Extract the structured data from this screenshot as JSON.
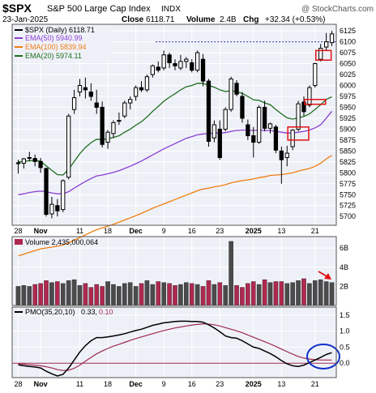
{
  "header": {
    "symbol": "$SPX",
    "name": "S&P 500 Large Cap Index",
    "exchange": "INDX",
    "watermark": "@ StockCharts.com",
    "date": "23-Jan-2025",
    "close_label": "Close",
    "close": "6118.71",
    "volume_label": "Volume",
    "volume": "2.4B",
    "chg_label": "Chg",
    "chg": "+32.34 (+0.53%)",
    "chg_color": "#0a7d0a"
  },
  "legend": {
    "price": "$SPX (Daily) 6118.71",
    "ema50": "EMA(50) 5940.99",
    "ema100": "EMA(100) 5839.94",
    "ema20": "EMA(20) 5974.11",
    "volume": "Volume 2,435,000,064",
    "pmo_prefix": "PMO(35,20,10)",
    "pmo_value": "0.33,",
    "pmo_signal": "0.10"
  },
  "colors": {
    "panel_bg": "#eef0f8",
    "grid": "#ffffff",
    "ema20": "#1d6e1d",
    "ema50": "#8a3fd1",
    "ema100": "#f07d10",
    "candle": "#000000",
    "vol_up": "#4b4b4b",
    "vol_down": "#b0284f",
    "pmo": "#000000",
    "pmo_signal": "#9e2a4f",
    "annotation_red": "#e01010",
    "annotation_blue": "#1030c8",
    "dotted_line": "#1a2aa8"
  },
  "x_axis_labels": [
    "28",
    "Nov",
    "11",
    "18",
    "Dec",
    "9",
    "16",
    "23",
    "2025",
    "13",
    "21"
  ],
  "chart_data": [
    {
      "type": "candlestick",
      "title": "$SPX (Daily) 6118.71",
      "ylim": [
        5680,
        6140
      ],
      "y_ticks": [
        5700,
        5725,
        5750,
        5775,
        5800,
        5825,
        5850,
        5875,
        5900,
        5925,
        5950,
        5975,
        6000,
        6025,
        6050,
        6075,
        6100,
        6125
      ],
      "grid": true,
      "legend_position": "top-left",
      "reference_line": 6100,
      "candles": [
        {
          "o": 5821,
          "h": 5830,
          "l": 5798,
          "c": 5823
        },
        {
          "o": 5822,
          "h": 5834,
          "l": 5810,
          "c": 5832
        },
        {
          "o": 5834,
          "h": 5848,
          "l": 5826,
          "c": 5835
        },
        {
          "o": 5833,
          "h": 5842,
          "l": 5815,
          "c": 5826
        },
        {
          "o": 5826,
          "h": 5834,
          "l": 5800,
          "c": 5812
        },
        {
          "o": 5810,
          "h": 5812,
          "l": 5700,
          "c": 5705
        },
        {
          "o": 5706,
          "h": 5745,
          "l": 5696,
          "c": 5728
        },
        {
          "o": 5725,
          "h": 5740,
          "l": 5700,
          "c": 5713
        },
        {
          "o": 5716,
          "h": 5785,
          "l": 5710,
          "c": 5782
        },
        {
          "o": 5790,
          "h": 5935,
          "l": 5785,
          "c": 5930
        },
        {
          "o": 5945,
          "h": 5990,
          "l": 5935,
          "c": 5972
        },
        {
          "o": 5985,
          "h": 6015,
          "l": 5975,
          "c": 6000
        },
        {
          "o": 5995,
          "h": 6018,
          "l": 5970,
          "c": 5990
        },
        {
          "o": 5985,
          "h": 6005,
          "l": 5965,
          "c": 5975
        },
        {
          "o": 5960,
          "h": 5990,
          "l": 5935,
          "c": 5950
        },
        {
          "o": 5950,
          "h": 5963,
          "l": 5858,
          "c": 5865
        },
        {
          "o": 5870,
          "h": 5898,
          "l": 5855,
          "c": 5893
        },
        {
          "o": 5890,
          "h": 5920,
          "l": 5880,
          "c": 5915
        },
        {
          "o": 5918,
          "h": 5938,
          "l": 5910,
          "c": 5920
        },
        {
          "o": 5930,
          "h": 5965,
          "l": 5925,
          "c": 5960
        },
        {
          "o": 5960,
          "h": 5975,
          "l": 5945,
          "c": 5968
        },
        {
          "o": 5975,
          "h": 6000,
          "l": 5965,
          "c": 5995
        },
        {
          "o": 5995,
          "h": 6010,
          "l": 5985,
          "c": 5990
        },
        {
          "o": 5990,
          "h": 6025,
          "l": 5985,
          "c": 6020
        },
        {
          "o": 6025,
          "h": 6048,
          "l": 6018,
          "c": 6045
        },
        {
          "o": 6042,
          "h": 6055,
          "l": 6030,
          "c": 6035
        },
        {
          "o": 6040,
          "h": 6080,
          "l": 6035,
          "c": 6070
        },
        {
          "o": 6070,
          "h": 6075,
          "l": 6040,
          "c": 6052
        },
        {
          "o": 6050,
          "h": 6060,
          "l": 6035,
          "c": 6045
        },
        {
          "o": 6040,
          "h": 6070,
          "l": 6035,
          "c": 6055
        },
        {
          "o": 6055,
          "h": 6065,
          "l": 6040,
          "c": 6060
        },
        {
          "o": 6052,
          "h": 6060,
          "l": 6030,
          "c": 6035
        },
        {
          "o": 6035,
          "h": 6080,
          "l": 6030,
          "c": 6075
        },
        {
          "o": 6060,
          "h": 6072,
          "l": 5998,
          "c": 6010
        },
        {
          "o": 6010,
          "h": 6015,
          "l": 5860,
          "c": 5872
        },
        {
          "o": 5880,
          "h": 5920,
          "l": 5870,
          "c": 5910
        },
        {
          "o": 5900,
          "h": 5920,
          "l": 5830,
          "c": 5835
        },
        {
          "o": 5900,
          "h": 5950,
          "l": 5895,
          "c": 5945
        },
        {
          "o": 5945,
          "h": 6020,
          "l": 5940,
          "c": 6015
        },
        {
          "o": 6005,
          "h": 6012,
          "l": 5975,
          "c": 5980
        },
        {
          "o": 5975,
          "h": 5985,
          "l": 5915,
          "c": 5925
        },
        {
          "o": 5910,
          "h": 5922,
          "l": 5875,
          "c": 5885
        },
        {
          "o": 5885,
          "h": 5905,
          "l": 5835,
          "c": 5870
        },
        {
          "o": 5870,
          "h": 5955,
          "l": 5866,
          "c": 5950
        },
        {
          "o": 5950,
          "h": 5965,
          "l": 5895,
          "c": 5902
        },
        {
          "o": 5902,
          "h": 5915,
          "l": 5890,
          "c": 5912
        },
        {
          "o": 5905,
          "h": 5910,
          "l": 5845,
          "c": 5852
        },
        {
          "o": 5850,
          "h": 5860,
          "l": 5775,
          "c": 5830
        },
        {
          "o": 5835,
          "h": 5862,
          "l": 5815,
          "c": 5845
        },
        {
          "o": 5860,
          "h": 5900,
          "l": 5852,
          "c": 5898
        },
        {
          "o": 5900,
          "h": 5965,
          "l": 5895,
          "c": 5958
        },
        {
          "o": 5962,
          "h": 5975,
          "l": 5930,
          "c": 5940
        },
        {
          "o": 5955,
          "h": 6000,
          "l": 5950,
          "c": 5995
        },
        {
          "o": 6000,
          "h": 6052,
          "l": 5995,
          "c": 6050
        },
        {
          "o": 6060,
          "h": 6095,
          "l": 6055,
          "c": 6085
        },
        {
          "o": 6088,
          "h": 6120,
          "l": 6080,
          "c": 6100
        },
        {
          "o": 6098,
          "h": 6125,
          "l": 6090,
          "c": 6118
        }
      ],
      "ema20": [
        5825,
        5826,
        5828,
        5828,
        5827,
        5816,
        5806,
        5796,
        5795,
        5808,
        5826,
        5844,
        5858,
        5869,
        5877,
        5876,
        5878,
        5881,
        5885,
        5893,
        5900,
        5909,
        5917,
        5928,
        5941,
        5952,
        5964,
        5973,
        5981,
        5990,
        5997,
        6000,
        6005,
        6005,
        6000,
        5996,
        5990,
        5986,
        5988,
        5986,
        5982,
        5975,
        5967,
        5966,
        5960,
        5956,
        5945,
        5935,
        5926,
        5923,
        5926,
        5929,
        5935,
        5945,
        5956,
        5968,
        5974
      ],
      "ema50": [
        5750,
        5752,
        5755,
        5757,
        5758,
        5757,
        5754,
        5752,
        5752,
        5757,
        5765,
        5773,
        5780,
        5787,
        5793,
        5795,
        5798,
        5801,
        5805,
        5810,
        5815,
        5821,
        5827,
        5834,
        5841,
        5848,
        5855,
        5861,
        5867,
        5873,
        5879,
        5883,
        5887,
        5889,
        5890,
        5891,
        5891,
        5892,
        5895,
        5897,
        5898,
        5898,
        5897,
        5898,
        5897,
        5897,
        5895,
        5893,
        5891,
        5891,
        5893,
        5895,
        5898,
        5903,
        5910,
        5925,
        5941
      ],
      "ema100": [
        5610,
        5614,
        5618,
        5622,
        5626,
        5628,
        5630,
        5632,
        5635,
        5640,
        5646,
        5652,
        5658,
        5664,
        5670,
        5674,
        5678,
        5682,
        5687,
        5692,
        5697,
        5702,
        5707,
        5713,
        5719,
        5724,
        5729,
        5734,
        5739,
        5744,
        5749,
        5754,
        5759,
        5763,
        5765,
        5768,
        5770,
        5773,
        5777,
        5780,
        5782,
        5784,
        5786,
        5789,
        5791,
        5794,
        5795,
        5796,
        5798,
        5800,
        5804,
        5807,
        5810,
        5815,
        5822,
        5832,
        5840
      ]
    },
    {
      "type": "bar",
      "title": "Volume 2,435,000,064",
      "ylim": [
        0,
        7.2
      ],
      "y_ticks": [
        "2B",
        "4B",
        "6B"
      ],
      "y_tick_values": [
        2,
        4,
        6
      ],
      "grid": true,
      "values": [
        2.0,
        2.1,
        2.0,
        2.2,
        2.3,
        2.6,
        2.4,
        2.5,
        2.3,
        2.6,
        2.7,
        2.1,
        2.3,
        1.9,
        2.2,
        2.0,
        2.5,
        2.2,
        2.0,
        2.3,
        2.4,
        2.0,
        2.3,
        2.6,
        2.2,
        2.5,
        2.4,
        2.3,
        2.1,
        2.2,
        2.4,
        2.3,
        2.2,
        2.0,
        2.6,
        2.2,
        2.4,
        2.1,
        6.7,
        2.1,
        1.9,
        2.3,
        2.5,
        2.2,
        2.7,
        2.4,
        2.5,
        2.5,
        2.3,
        2.4,
        2.6,
        2.8,
        2.3,
        2.6,
        2.7,
        2.5,
        2.4
      ]
    },
    {
      "type": "line",
      "title": "PMO(35,20,10) 0.33, 0.10",
      "ylim": [
        -0.45,
        1.75
      ],
      "y_ticks": [
        0.0,
        0.5,
        1.0,
        1.5
      ],
      "zero_line": true,
      "series": [
        {
          "name": "PMO(35,20,10)",
          "values": [
            -0.05,
            -0.08,
            -0.1,
            -0.12,
            -0.15,
            -0.25,
            -0.33,
            -0.4,
            -0.35,
            -0.15,
            0.1,
            0.35,
            0.55,
            0.7,
            0.8,
            0.8,
            0.82,
            0.85,
            0.88,
            0.92,
            0.97,
            1.02,
            1.06,
            1.12,
            1.18,
            1.22,
            1.26,
            1.28,
            1.3,
            1.31,
            1.31,
            1.3,
            1.3,
            1.28,
            1.2,
            1.1,
            0.98,
            0.85,
            0.8,
            0.78,
            0.7,
            0.6,
            0.5,
            0.46,
            0.38,
            0.3,
            0.2,
            0.08,
            -0.02,
            -0.08,
            -0.1,
            -0.06,
            0.02,
            0.1,
            0.18,
            0.27,
            0.33
          ]
        },
        {
          "name": "Signal",
          "values": [
            -0.02,
            -0.03,
            -0.05,
            -0.06,
            -0.08,
            -0.11,
            -0.15,
            -0.2,
            -0.23,
            -0.22,
            -0.16,
            -0.06,
            0.06,
            0.18,
            0.29,
            0.38,
            0.46,
            0.53,
            0.59,
            0.65,
            0.71,
            0.77,
            0.82,
            0.87,
            0.92,
            0.97,
            1.02,
            1.06,
            1.1,
            1.13,
            1.16,
            1.19,
            1.21,
            1.23,
            1.22,
            1.2,
            1.16,
            1.11,
            1.06,
            1.01,
            0.95,
            0.88,
            0.81,
            0.74,
            0.67,
            0.6,
            0.52,
            0.44,
            0.36,
            0.28,
            0.21,
            0.16,
            0.13,
            0.11,
            0.1,
            0.1,
            0.1
          ]
        }
      ]
    }
  ]
}
